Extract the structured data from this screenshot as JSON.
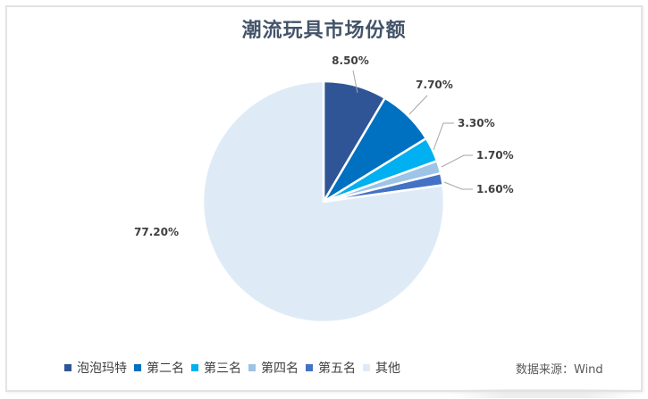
{
  "title": "潮流玩具市场份额",
  "source": "数据来源：Wind",
  "chart_data": {
    "type": "pie",
    "title": "潮流玩具市场份额",
    "categories": [
      "泡泡玛特",
      "第二名",
      "第三名",
      "第四名",
      "第五名",
      "其他"
    ],
    "values": [
      8.5,
      7.7,
      3.3,
      1.7,
      1.6,
      77.2
    ],
    "labels": [
      "8.50%",
      "7.70%",
      "3.30%",
      "1.70%",
      "1.60%",
      "77.20%"
    ],
    "colors": [
      "#2f5597",
      "#0070c0",
      "#00b0f0",
      "#9dc3e6",
      "#4472c4",
      "#deebf7"
    ],
    "start_angle": "12 o'clock, clockwise",
    "legend_position": "bottom",
    "source": "数据来源：Wind"
  },
  "legend": [
    {
      "label": "泡泡玛特",
      "color": "#2f5597"
    },
    {
      "label": "第二名",
      "color": "#0070c0"
    },
    {
      "label": "第三名",
      "color": "#00b0f0"
    },
    {
      "label": "第四名",
      "color": "#9dc3e6"
    },
    {
      "label": "第五名",
      "color": "#4472c4"
    },
    {
      "label": "其他",
      "color": "#deebf7"
    }
  ]
}
